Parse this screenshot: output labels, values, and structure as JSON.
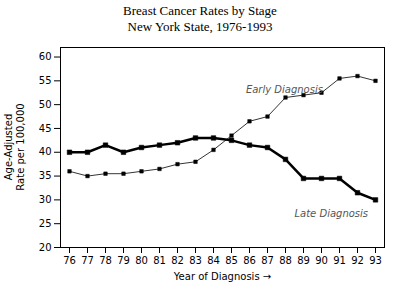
{
  "chart_data": {
    "type": "line",
    "title": "Breast Cancer Rates by Stage",
    "subtitle": "New York State, 1976-1993",
    "title_color": "#000000",
    "xlabel": "Year of Diagnosis",
    "ylabel": "Age-Adjusted\nRate per 100,000",
    "x": [
      76,
      77,
      78,
      79,
      80,
      81,
      82,
      83,
      84,
      85,
      86,
      87,
      88,
      89,
      90,
      91,
      92,
      93
    ],
    "series": [
      {
        "name": "Early Diagnosis",
        "color": "#000000",
        "marker": "square",
        "line_style": "solid",
        "values": [
          36.0,
          35.0,
          35.5,
          35.5,
          36.0,
          36.5,
          37.5,
          38.0,
          40.5,
          43.5,
          46.5,
          47.5,
          51.5,
          52.0,
          52.5,
          55.5,
          56.0,
          55.0
        ]
      },
      {
        "name": "Late Diagnosis",
        "color": "#000000",
        "marker": "square",
        "line_style": "solid",
        "values": [
          40.0,
          40.0,
          41.5,
          40.0,
          41.0,
          41.5,
          42.0,
          43.0,
          43.0,
          42.5,
          41.5,
          41.0,
          38.5,
          34.5,
          34.5,
          34.5,
          31.5,
          30.0
        ]
      }
    ],
    "annotations": [
      {
        "text": "Early Diagnosis",
        "x": 85.8,
        "y": 52.5,
        "color": "#555555"
      },
      {
        "text": "Late Diagnosis",
        "x": 88.5,
        "y": 26.5,
        "color": "#555555"
      }
    ],
    "xlim": [
      75.5,
      93.5
    ],
    "xticks": [
      76,
      77,
      78,
      79,
      80,
      81,
      82,
      83,
      84,
      85,
      86,
      87,
      88,
      89,
      90,
      91,
      92,
      93
    ],
    "ylim": [
      20,
      62
    ],
    "yticks": [
      20,
      25,
      30,
      35,
      40,
      45,
      50,
      55,
      60
    ],
    "grid": false
  }
}
